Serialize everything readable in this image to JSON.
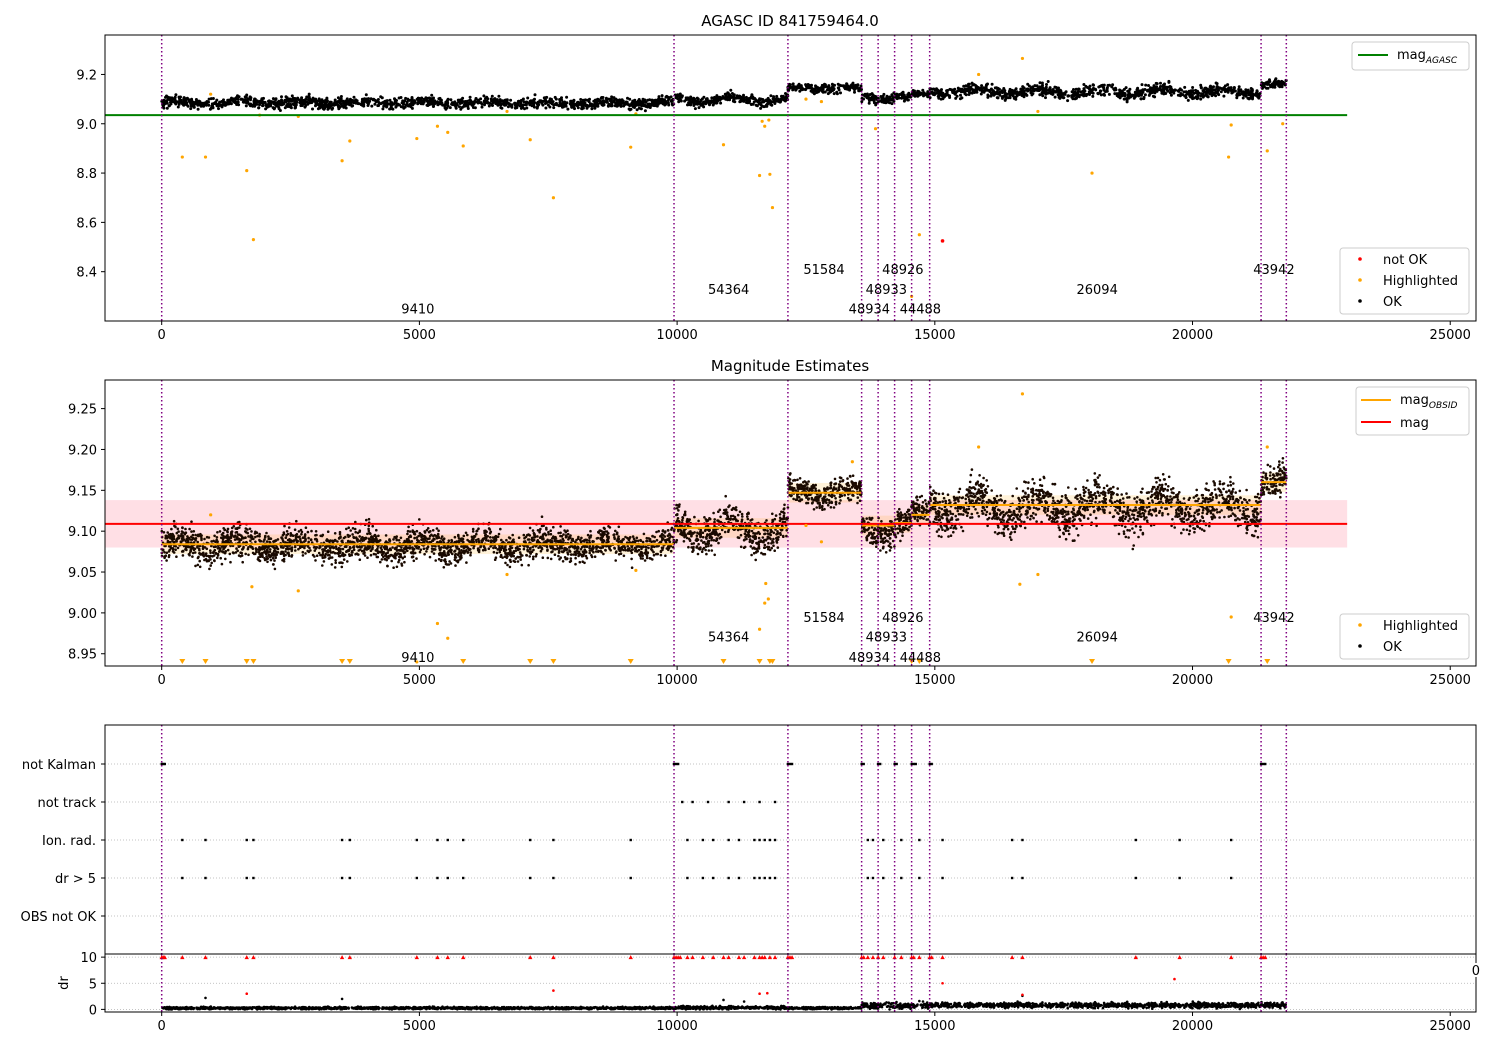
{
  "colors": {
    "ok": "#000000",
    "highlighted": "#ffa500",
    "not_ok": "#ff0000",
    "mag_agasc": "#008000",
    "mag_obsid": "#ffa500",
    "mag": "#ff0000",
    "obs_boundary": "#800080",
    "band": "#ffc0cb"
  },
  "chart_data": [
    {
      "type": "scatter",
      "title": "AGASC ID 841759464.0",
      "xlim": [
        -1100,
        25500
      ],
      "ylim": [
        8.2,
        9.36
      ],
      "xticks": [
        0,
        5000,
        10000,
        15000,
        20000,
        25000
      ],
      "yticks": [
        8.4,
        8.6,
        8.8,
        9.0,
        9.2
      ],
      "grid": false,
      "legend_upper": {
        "placement": "top-right",
        "entries": [
          {
            "label": "mag",
            "sub": "AGASC",
            "marker": "line",
            "color": "#008000"
          }
        ]
      },
      "legend_lower": {
        "placement": "bottom-right",
        "entries": [
          {
            "label": "not OK",
            "marker": "dot",
            "color": "#ff0000"
          },
          {
            "label": "Highlighted",
            "marker": "dot",
            "color": "#ffa500"
          },
          {
            "label": "OK",
            "marker": "dot",
            "color": "#000000"
          }
        ]
      },
      "mag_agasc": {
        "value": 9.035,
        "x": [
          -1100,
          23000
        ]
      },
      "obs_boundaries": [
        0,
        9940,
        12150,
        13580,
        13900,
        14220,
        14550,
        14900,
        21330,
        21820
      ],
      "obsid_labels": [
        {
          "text": "9410",
          "x": 4970,
          "y": 8.25
        },
        {
          "text": "54364",
          "x": 11000,
          "y": 8.33
        },
        {
          "text": "51584",
          "x": 12850,
          "y": 8.41
        },
        {
          "text": "48934",
          "x": 13730,
          "y": 8.25
        },
        {
          "text": "48933",
          "x": 14060,
          "y": 8.33
        },
        {
          "text": "48926",
          "x": 14380,
          "y": 8.41
        },
        {
          "text": "44488",
          "x": 14720,
          "y": 8.25
        },
        {
          "text": "26094",
          "x": 18150,
          "y": 8.33
        },
        {
          "text": "43942",
          "x": 21580,
          "y": 8.41
        }
      ],
      "ok_segments": [
        {
          "x0": 0,
          "x1": 9940,
          "mean": 9.085,
          "spread": 0.018,
          "osc": 0.006
        },
        {
          "x0": 9940,
          "x1": 12150,
          "mean": 9.097,
          "spread": 0.016,
          "osc": 0.012
        },
        {
          "x0": 12150,
          "x1": 13580,
          "mean": 9.145,
          "spread": 0.015,
          "osc": 0.005
        },
        {
          "x0": 13580,
          "x1": 14220,
          "mean": 9.105,
          "spread": 0.018,
          "osc": 0.008
        },
        {
          "x0": 14220,
          "x1": 14550,
          "mean": 9.11,
          "spread": 0.015,
          "osc": 0.005
        },
        {
          "x0": 14550,
          "x1": 14900,
          "mean": 9.12,
          "spread": 0.012,
          "osc": 0.004
        },
        {
          "x0": 14900,
          "x1": 21330,
          "mean": 9.13,
          "spread": 0.02,
          "osc": 0.01
        },
        {
          "x0": 21330,
          "x1": 21820,
          "mean": 9.16,
          "spread": 0.015,
          "osc": 0.005
        }
      ],
      "highlighted_points": [
        [
          400,
          8.865
        ],
        [
          850,
          8.865
        ],
        [
          1650,
          8.81
        ],
        [
          1780,
          8.53
        ],
        [
          3500,
          8.85
        ],
        [
          3650,
          8.93
        ],
        [
          4950,
          8.94
        ],
        [
          5350,
          8.99
        ],
        [
          5550,
          8.965
        ],
        [
          5850,
          8.91
        ],
        [
          7150,
          8.935
        ],
        [
          7600,
          8.7
        ],
        [
          9100,
          8.905
        ],
        [
          10900,
          8.915
        ],
        [
          11600,
          8.79
        ],
        [
          11800,
          8.795
        ],
        [
          11850,
          8.66
        ],
        [
          11650,
          9.01
        ],
        [
          11700,
          8.99
        ],
        [
          11780,
          9.015
        ],
        [
          13850,
          8.98
        ],
        [
          14550,
          8.3
        ],
        [
          14700,
          8.55
        ],
        [
          16700,
          9.265
        ],
        [
          17000,
          9.05
        ],
        [
          18050,
          8.8
        ],
        [
          20700,
          8.865
        ],
        [
          20750,
          8.995
        ],
        [
          21450,
          8.89
        ],
        [
          21750,
          9.0
        ],
        [
          950,
          9.12
        ],
        [
          2650,
          9.03
        ],
        [
          1900,
          9.035
        ],
        [
          6700,
          9.05
        ],
        [
          9200,
          9.04
        ],
        [
          12500,
          9.1
        ],
        [
          12800,
          9.09
        ],
        [
          15850,
          9.2
        ]
      ],
      "not_ok_points": [
        [
          15150,
          8.525
        ]
      ]
    },
    {
      "type": "scatter",
      "title": "Magnitude Estimates",
      "xlim": [
        -1100,
        25500
      ],
      "ylim": [
        8.935,
        9.285
      ],
      "xticks": [
        0,
        5000,
        10000,
        15000,
        20000,
        25000
      ],
      "yticks": [
        8.95,
        9.0,
        9.05,
        9.1,
        9.15,
        9.2,
        9.25
      ],
      "grid": false,
      "legend_upper": {
        "placement": "top-right",
        "entries": [
          {
            "label": "mag",
            "sub": "OBSID",
            "marker": "line",
            "color": "#ffa500"
          },
          {
            "label": "mag",
            "marker": "line",
            "color": "#ff0000"
          }
        ]
      },
      "legend_lower": {
        "placement": "bottom-right",
        "entries": [
          {
            "label": "Highlighted",
            "marker": "dot",
            "color": "#ffa500"
          },
          {
            "label": "OK",
            "marker": "dot",
            "color": "#000000"
          }
        ]
      },
      "mag": {
        "value": 9.109,
        "band": [
          9.08,
          9.138
        ],
        "x": [
          -1100,
          23000
        ]
      },
      "mag_obsid": [
        {
          "x0": 0,
          "x1": 9940,
          "value": 9.084
        },
        {
          "x0": 9940,
          "x1": 12150,
          "value": 9.104
        },
        {
          "x0": 12150,
          "x1": 13580,
          "value": 9.147
        },
        {
          "x0": 13580,
          "x1": 14220,
          "value": 9.107
        },
        {
          "x0": 14220,
          "x1": 14550,
          "value": 9.11
        },
        {
          "x0": 14550,
          "x1": 14900,
          "value": 9.12
        },
        {
          "x0": 14900,
          "x1": 21330,
          "value": 9.132
        },
        {
          "x0": 21330,
          "x1": 21820,
          "value": 9.16
        }
      ],
      "obs_boundaries": [
        0,
        9940,
        12150,
        13580,
        13900,
        14220,
        14550,
        14900,
        21330,
        21820
      ],
      "obsid_labels": [
        {
          "text": "9410",
          "x": 4970,
          "y": 8.946
        },
        {
          "text": "54364",
          "x": 11000,
          "y": 8.971
        },
        {
          "text": "51584",
          "x": 12850,
          "y": 8.995
        },
        {
          "text": "48934",
          "x": 13730,
          "y": 8.946
        },
        {
          "text": "48933",
          "x": 14060,
          "y": 8.971
        },
        {
          "text": "48926",
          "x": 14380,
          "y": 8.995
        },
        {
          "text": "44488",
          "x": 14720,
          "y": 8.946
        },
        {
          "text": "26094",
          "x": 18150,
          "y": 8.971
        },
        {
          "text": "43942",
          "x": 21580,
          "y": 8.995
        }
      ],
      "ok_segments": [
        {
          "x0": 0,
          "x1": 9940,
          "mean": 9.083,
          "spread": 0.016,
          "osc": 0.006
        },
        {
          "x0": 9940,
          "x1": 12150,
          "mean": 9.103,
          "spread": 0.018,
          "osc": 0.012
        },
        {
          "x0": 12150,
          "x1": 13580,
          "mean": 9.148,
          "spread": 0.014,
          "osc": 0.005
        },
        {
          "x0": 13580,
          "x1": 14220,
          "mean": 9.103,
          "spread": 0.016,
          "osc": 0.008
        },
        {
          "x0": 14220,
          "x1": 14550,
          "mean": 9.11,
          "spread": 0.015,
          "osc": 0.005
        },
        {
          "x0": 14550,
          "x1": 14900,
          "mean": 9.123,
          "spread": 0.012,
          "osc": 0.004
        },
        {
          "x0": 14900,
          "x1": 21330,
          "mean": 9.13,
          "spread": 0.022,
          "osc": 0.012
        },
        {
          "x0": 21330,
          "x1": 21820,
          "mean": 9.16,
          "spread": 0.016,
          "osc": 0.005
        }
      ],
      "highlighted_points": [
        [
          950,
          9.12
        ],
        [
          4950,
          8.94
        ],
        [
          5350,
          8.987
        ],
        [
          5550,
          8.969
        ],
        [
          2650,
          9.027
        ],
        [
          1750,
          9.032
        ],
        [
          12500,
          9.107
        ],
        [
          12800,
          9.087
        ],
        [
          11600,
          8.98
        ],
        [
          11700,
          9.012
        ],
        [
          11720,
          9.036
        ],
        [
          11770,
          9.017
        ],
        [
          13400,
          9.185
        ],
        [
          15850,
          9.203
        ],
        [
          16700,
          9.268
        ],
        [
          16650,
          9.035
        ],
        [
          17000,
          9.047
        ],
        [
          20750,
          8.995
        ],
        [
          21450,
          9.203
        ],
        [
          6700,
          9.047
        ],
        [
          9200,
          9.052
        ]
      ],
      "below_range_markers": [
        400,
        850,
        1650,
        1780,
        3500,
        3650,
        5850,
        7150,
        7600,
        9100,
        10900,
        11600,
        11800,
        11850,
        14550,
        14700,
        18050,
        20700,
        21450
      ]
    },
    {
      "type": "scatter",
      "title": "",
      "xlim": [
        -1100,
        25500
      ],
      "categories": [
        "not Kalman",
        "not track",
        "Ion. rad.",
        "dr > 5",
        "OBS not OK"
      ],
      "grid": "y-dotted",
      "flag_points": {
        "not Kalman": [
          0,
          30,
          60,
          9940,
          9980,
          10020,
          12150,
          12190,
          12230,
          13580,
          13620,
          13900,
          13940,
          14220,
          14260,
          14550,
          14590,
          14630,
          14900,
          14940,
          21330,
          21370,
          21410
        ],
        "not track": [
          10100,
          10300,
          10600,
          11000,
          11300,
          11600,
          11900
        ],
        "Ion. rad.": [
          400,
          850,
          1650,
          1780,
          3500,
          3650,
          4950,
          5350,
          5550,
          5850,
          7150,
          7600,
          9100,
          10200,
          10500,
          10700,
          11000,
          11200,
          11500,
          11600,
          11700,
          11800,
          11900,
          13700,
          13800,
          14000,
          14350,
          14700,
          15150,
          16500,
          16700,
          18900,
          19750,
          20750
        ],
        "dr > 5": [
          400,
          850,
          1650,
          1780,
          3500,
          3650,
          4950,
          5350,
          5550,
          5850,
          7150,
          7600,
          9100,
          10200,
          10500,
          10700,
          11000,
          11200,
          11500,
          11600,
          11700,
          11800,
          11900,
          13700,
          13800,
          14000,
          14350,
          14700,
          15150,
          16500,
          16700,
          18900,
          19750,
          20750
        ],
        "OBS not OK": []
      },
      "obs_boundaries": [
        0,
        9940,
        12150,
        13580,
        13900,
        14220,
        14550,
        14900,
        21330,
        21820
      ]
    },
    {
      "type": "scatter",
      "title": "",
      "ylabel": "dr",
      "xlim": [
        -1100,
        25500
      ],
      "ylim": [
        -0.5,
        10.6
      ],
      "xticks": [
        0,
        5000,
        10000,
        15000,
        20000,
        25000
      ],
      "yticks": [
        0,
        5,
        10
      ],
      "right_tick_fragment": "0",
      "grid": "y-dotted",
      "red_capped_x": [
        0,
        30,
        60,
        400,
        850,
        1650,
        1780,
        3500,
        3650,
        4950,
        5350,
        5550,
        5850,
        7150,
        7600,
        9100,
        9940,
        9980,
        10020,
        10060,
        10200,
        10300,
        10500,
        10700,
        10900,
        11000,
        11200,
        11300,
        11500,
        11600,
        11650,
        11700,
        11800,
        11900,
        12150,
        12190,
        12230,
        13580,
        13620,
        13700,
        13800,
        13900,
        14000,
        14220,
        14350,
        14550,
        14590,
        14700,
        14900,
        14940,
        15150,
        16500,
        16700,
        18900,
        19750,
        20750,
        21330,
        21370,
        21410
      ],
      "red_points": [
        [
          1650,
          3.0
        ],
        [
          7600,
          3.6
        ],
        [
          11600,
          3.0
        ],
        [
          11750,
          3.1
        ],
        [
          15150,
          5.0
        ],
        [
          16700,
          2.8
        ],
        [
          19650,
          5.8
        ]
      ],
      "outliers": [
        [
          850,
          2.2
        ],
        [
          3500,
          2.0
        ],
        [
          10900,
          1.8
        ],
        [
          11300,
          1.5
        ],
        [
          14700,
          1.6
        ],
        [
          16700,
          2.6
        ],
        [
          19500,
          1.4
        ]
      ],
      "dr_segments": [
        {
          "x0": 0,
          "x1": 9940,
          "mean": 0.25,
          "spread": 0.18
        },
        {
          "x0": 9940,
          "x1": 12150,
          "mean": 0.35,
          "spread": 0.25
        },
        {
          "x0": 12150,
          "x1": 13580,
          "mean": 0.25,
          "spread": 0.18
        },
        {
          "x0": 13580,
          "x1": 14900,
          "mean": 0.7,
          "spread": 0.45
        },
        {
          "x0": 14900,
          "x1": 21330,
          "mean": 0.8,
          "spread": 0.4
        },
        {
          "x0": 21330,
          "x1": 21820,
          "mean": 0.8,
          "spread": 0.4
        }
      ],
      "obs_boundaries": [
        0,
        9940,
        12150,
        13580,
        13900,
        14220,
        14550,
        14900,
        21330,
        21820
      ]
    }
  ]
}
